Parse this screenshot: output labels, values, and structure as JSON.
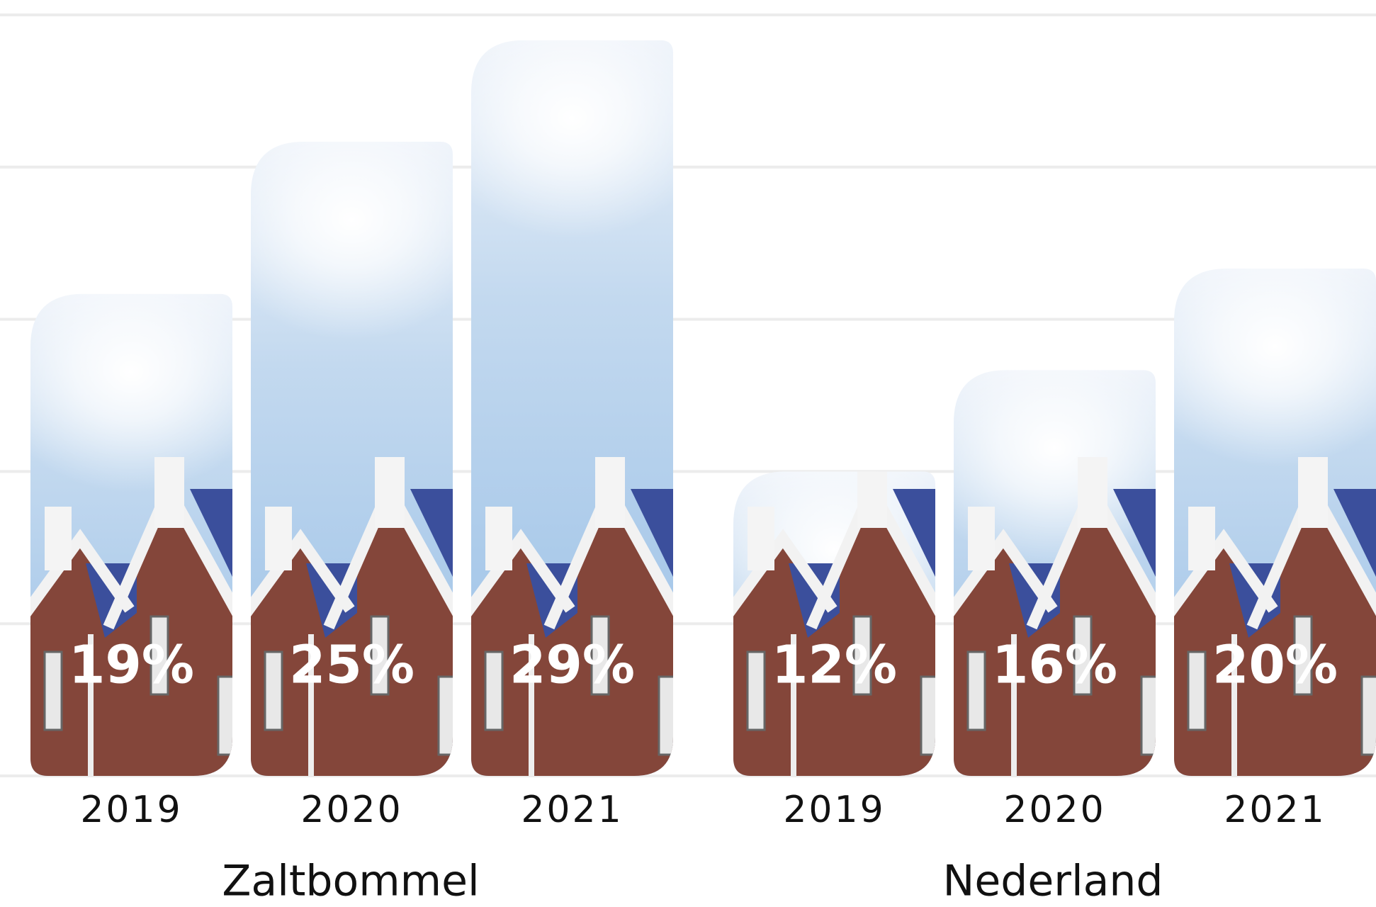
{
  "chart_data": {
    "type": "bar",
    "groups": [
      {
        "name": "Zaltbommel",
        "categories": [
          "2019",
          "2020",
          "2021"
        ],
        "values": [
          19,
          25,
          29
        ],
        "value_labels": [
          "19%",
          "25%",
          "29%"
        ]
      },
      {
        "name": "Nederland",
        "categories": [
          "2019",
          "2020",
          "2021"
        ],
        "values": [
          12,
          16,
          20
        ],
        "value_labels": [
          "12%",
          "16%",
          "20%"
        ]
      }
    ],
    "ylim": [
      0,
      30
    ],
    "yticks": [
      0,
      6,
      12,
      18,
      24,
      30
    ],
    "grid": true
  }
}
